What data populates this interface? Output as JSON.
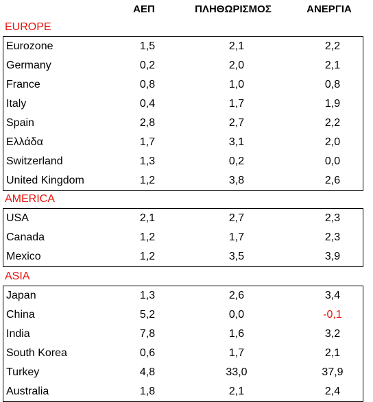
{
  "columns": [
    "ΑΕΠ",
    "ΠΛΗΘΩΡΙΣΜΟΣ",
    "ΑΝΕΡΓΙΑ"
  ],
  "accent_color": "#e8140c",
  "regions": [
    {
      "name": "EUROPE",
      "rows": [
        {
          "country": "Eurozone",
          "gdp": "1,5",
          "inflation": "2,1",
          "unemployment": "2,2"
        },
        {
          "country": "Germany",
          "gdp": "0,2",
          "inflation": "2,0",
          "unemployment": "2,1"
        },
        {
          "country": "France",
          "gdp": "0,8",
          "inflation": "1,0",
          "unemployment": "0,8"
        },
        {
          "country": "Italy",
          "gdp": "0,4",
          "inflation": "1,7",
          "unemployment": "1,9"
        },
        {
          "country": "Spain",
          "gdp": "2,8",
          "inflation": "2,7",
          "unemployment": "2,2"
        },
        {
          "country": "Ελλάδα",
          "gdp": "1,7",
          "inflation": "3,1",
          "unemployment": "2,0"
        },
        {
          "country": "Switzerland",
          "gdp": "1,3",
          "inflation": "0,2",
          "unemployment": "0,0"
        },
        {
          "country": "United Kingdom",
          "gdp": "1,2",
          "inflation": "3,8",
          "unemployment": "2,6"
        }
      ]
    },
    {
      "name": "AMERICA",
      "rows": [
        {
          "country": "USA",
          "gdp": "2,1",
          "inflation": "2,7",
          "unemployment": "2,3"
        },
        {
          "country": "Canada",
          "gdp": "1,2",
          "inflation": "1,7",
          "unemployment": "2,3"
        },
        {
          "country": "Mexico",
          "gdp": "1,2",
          "inflation": "3,5",
          "unemployment": "3,9"
        }
      ]
    },
    {
      "name": "ASIA",
      "rows": [
        {
          "country": "Japan",
          "gdp": "1,3",
          "inflation": "2,6",
          "unemployment": "3,4"
        },
        {
          "country": "China",
          "gdp": "5,2",
          "inflation": "0,0",
          "unemployment": "-0,1"
        },
        {
          "country": "India",
          "gdp": "7,8",
          "inflation": "1,6",
          "unemployment": "3,2"
        },
        {
          "country": "South Korea",
          "gdp": "0,6",
          "inflation": "1,7",
          "unemployment": "2,1"
        },
        {
          "country": "Turkey",
          "gdp": "4,8",
          "inflation": "33,0",
          "unemployment": "37,9"
        },
        {
          "country": "Australia",
          "gdp": "1,8",
          "inflation": "2,1",
          "unemployment": "2,4"
        }
      ]
    }
  ]
}
